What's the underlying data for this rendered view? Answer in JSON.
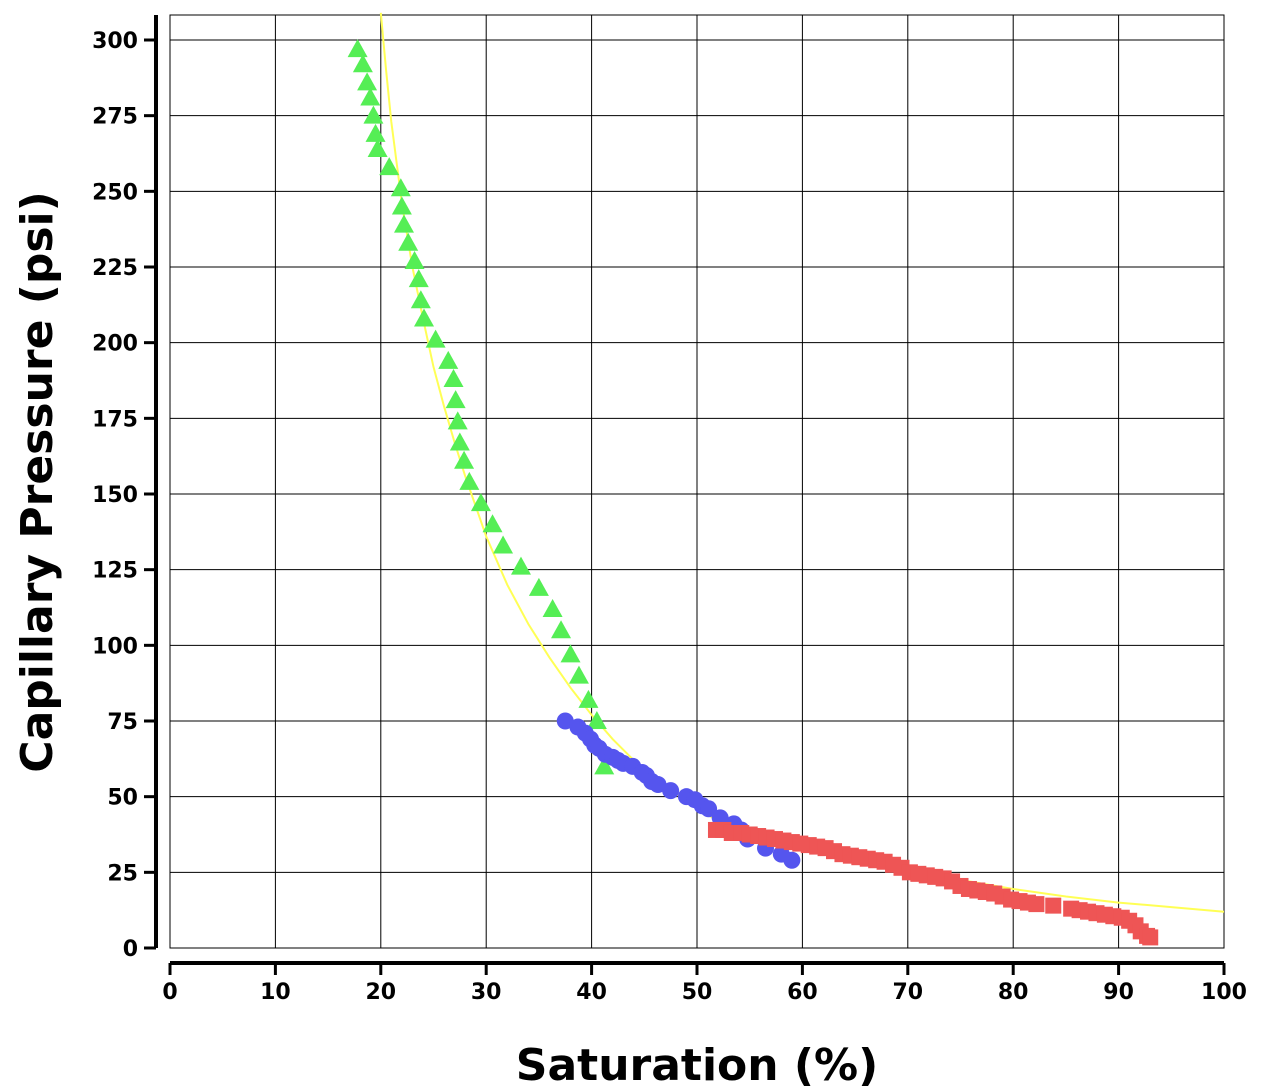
{
  "chart_data": {
    "type": "scatter",
    "title": "",
    "xlabel": "Saturation (%)",
    "ylabel": "Capillary Pressure (psi)",
    "xlim": [
      0,
      100
    ],
    "ylim": [
      0,
      300
    ],
    "xticks": [
      0,
      10,
      20,
      30,
      40,
      50,
      60,
      70,
      80,
      90,
      100
    ],
    "yticks": [
      0,
      25,
      50,
      75,
      100,
      125,
      150,
      175,
      200,
      225,
      250,
      275,
      300
    ],
    "grid": true,
    "colors": {
      "triangles": "#55ee55",
      "circles": "#5555ee",
      "squares": "#ee5555",
      "fit": "#ffff55"
    },
    "series": [
      {
        "marker": "triangle",
        "color": "#55ee55",
        "points": [
          [
            17.8,
            297
          ],
          [
            18.3,
            292
          ],
          [
            18.7,
            286
          ],
          [
            19.0,
            281
          ],
          [
            19.3,
            275
          ],
          [
            19.5,
            269
          ],
          [
            19.7,
            264
          ],
          [
            20.8,
            258
          ],
          [
            21.9,
            251
          ],
          [
            22.0,
            245
          ],
          [
            22.2,
            239
          ],
          [
            22.6,
            233
          ],
          [
            23.2,
            227
          ],
          [
            23.6,
            221
          ],
          [
            23.8,
            214
          ],
          [
            24.1,
            208
          ],
          [
            25.2,
            201
          ],
          [
            26.4,
            194
          ],
          [
            26.9,
            188
          ],
          [
            27.1,
            181
          ],
          [
            27.3,
            174
          ],
          [
            27.5,
            167
          ],
          [
            27.9,
            161
          ],
          [
            28.4,
            154
          ],
          [
            29.5,
            147
          ],
          [
            30.6,
            140
          ],
          [
            31.6,
            133
          ],
          [
            33.3,
            126
          ],
          [
            35.0,
            119
          ],
          [
            36.3,
            112
          ],
          [
            37.1,
            105
          ],
          [
            38.0,
            97
          ],
          [
            38.8,
            90
          ],
          [
            39.7,
            82
          ],
          [
            40.5,
            75
          ],
          [
            41.2,
            60
          ]
        ]
      },
      {
        "marker": "circle",
        "color": "#5555ee",
        "points": [
          [
            37.5,
            75
          ],
          [
            38.7,
            73
          ],
          [
            39.4,
            71
          ],
          [
            39.9,
            69
          ],
          [
            40.3,
            67
          ],
          [
            40.7,
            66
          ],
          [
            41.3,
            64
          ],
          [
            42.0,
            63
          ],
          [
            42.5,
            62
          ],
          [
            43.0,
            61
          ],
          [
            43.9,
            60
          ],
          [
            44.8,
            58
          ],
          [
            45.2,
            57
          ],
          [
            45.7,
            55
          ],
          [
            46.3,
            54
          ],
          [
            47.5,
            52
          ],
          [
            49.0,
            50
          ],
          [
            49.8,
            49
          ],
          [
            50.5,
            47
          ],
          [
            51.1,
            46
          ],
          [
            52.2,
            43
          ],
          [
            53.5,
            41
          ],
          [
            54.2,
            39
          ],
          [
            54.8,
            36
          ],
          [
            56.5,
            33
          ],
          [
            58.0,
            31
          ],
          [
            59.0,
            29
          ]
        ]
      },
      {
        "marker": "square",
        "color": "#ee5555",
        "points": [
          [
            51.8,
            39
          ],
          [
            52.5,
            39
          ],
          [
            53.3,
            38
          ],
          [
            54.2,
            38
          ],
          [
            55.0,
            37.5
          ],
          [
            55.8,
            37
          ],
          [
            56.6,
            36.5
          ],
          [
            57.4,
            36
          ],
          [
            58.2,
            35.5
          ],
          [
            59.0,
            35
          ],
          [
            59.8,
            34.5
          ],
          [
            60.6,
            34
          ],
          [
            61.4,
            33.5
          ],
          [
            62.2,
            33
          ],
          [
            63.0,
            32
          ],
          [
            63.8,
            31
          ],
          [
            64.6,
            30.5
          ],
          [
            65.4,
            30
          ],
          [
            66.2,
            29.5
          ],
          [
            67.0,
            29
          ],
          [
            67.8,
            28.5
          ],
          [
            68.6,
            27.5
          ],
          [
            69.4,
            26.5
          ],
          [
            70.2,
            25
          ],
          [
            71.0,
            24.5
          ],
          [
            71.8,
            24
          ],
          [
            72.6,
            23.5
          ],
          [
            73.4,
            23
          ],
          [
            74.2,
            22
          ],
          [
            75.0,
            20.5
          ],
          [
            75.8,
            19.5
          ],
          [
            76.6,
            19
          ],
          [
            77.4,
            18.5
          ],
          [
            78.2,
            18
          ],
          [
            79.0,
            17
          ],
          [
            79.8,
            16
          ],
          [
            80.6,
            15.5
          ],
          [
            81.4,
            15
          ],
          [
            82.2,
            14.5
          ],
          [
            83.8,
            14
          ],
          [
            85.5,
            13
          ],
          [
            86.3,
            12.5
          ],
          [
            87.1,
            12
          ],
          [
            87.9,
            11.5
          ],
          [
            88.7,
            11
          ],
          [
            89.5,
            10.5
          ],
          [
            90.3,
            10
          ],
          [
            91.0,
            9
          ],
          [
            91.6,
            7.5
          ],
          [
            92.1,
            5.5
          ],
          [
            92.7,
            4
          ],
          [
            93.0,
            3.5
          ]
        ]
      },
      {
        "marker": "line",
        "color": "#ffff55",
        "points": [
          [
            20.0,
            309
          ],
          [
            20.5,
            290
          ],
          [
            21.0,
            273
          ],
          [
            22.0,
            246
          ],
          [
            23.0,
            225
          ],
          [
            24.0,
            208
          ],
          [
            25.0,
            192
          ],
          [
            26.0,
            179
          ],
          [
            27.0,
            167
          ],
          [
            28.0,
            156
          ],
          [
            30.0,
            136
          ],
          [
            32.0,
            120
          ],
          [
            34.0,
            107
          ],
          [
            36.0,
            96
          ],
          [
            38.0,
            86
          ],
          [
            40.0,
            77
          ],
          [
            42.0,
            69
          ],
          [
            44.0,
            62
          ],
          [
            46.0,
            56
          ],
          [
            48.0,
            51
          ],
          [
            50.0,
            46
          ],
          [
            52.0,
            42
          ],
          [
            55.0,
            38
          ],
          [
            58.0,
            35
          ],
          [
            60.0,
            33.5
          ],
          [
            65.0,
            30
          ],
          [
            70.0,
            26
          ],
          [
            75.0,
            22.5
          ],
          [
            80.0,
            19.5
          ],
          [
            85.0,
            17
          ],
          [
            90.0,
            15
          ],
          [
            95.0,
            13.5
          ],
          [
            100.0,
            12
          ]
        ]
      }
    ]
  }
}
